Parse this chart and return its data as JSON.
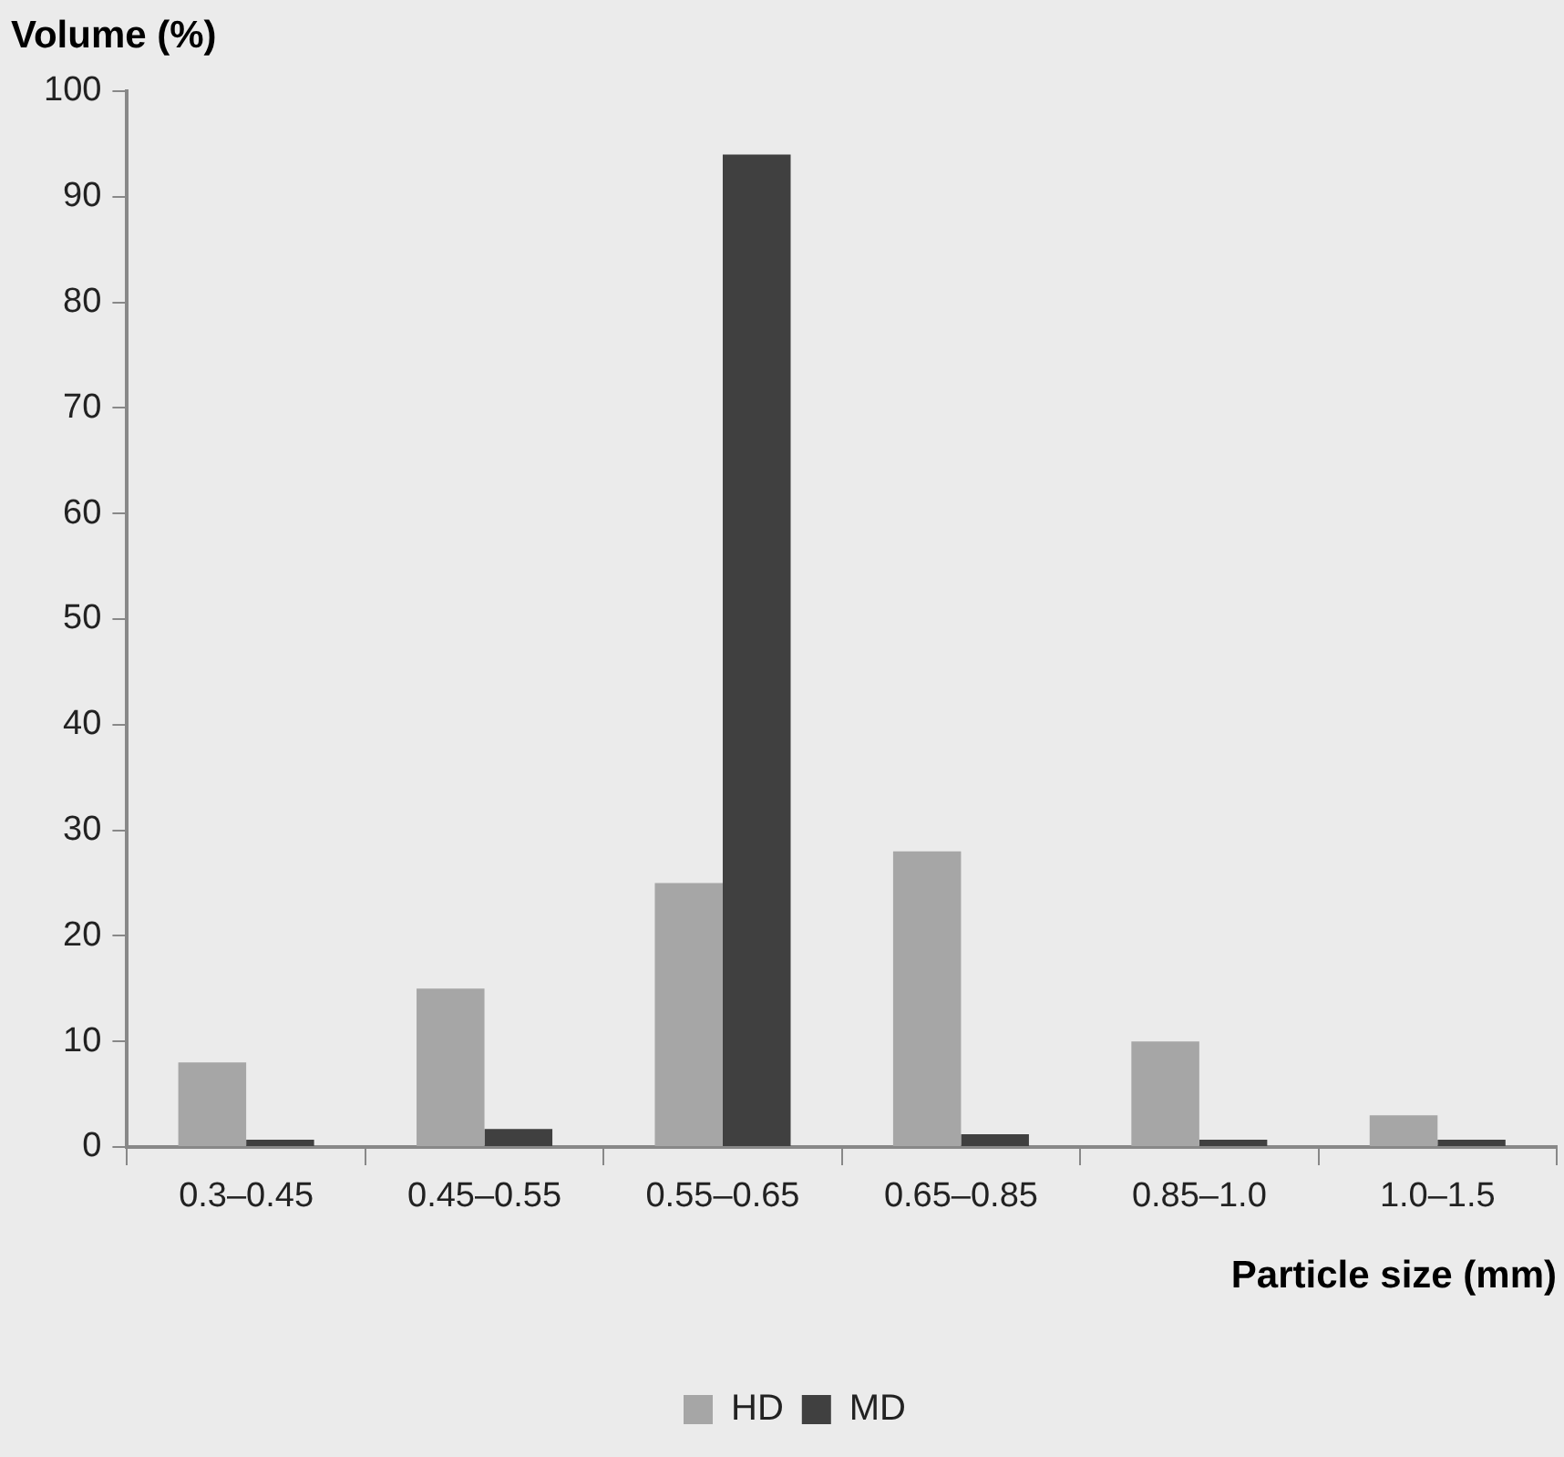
{
  "chart_data": {
    "type": "bar",
    "xlabel": "Particle size (mm)",
    "ylabel": "Volume (%)",
    "categories": [
      "0.3–0.45",
      "0.45–0.55",
      "0.55–0.65",
      "0.65–0.85",
      "0.85–1.0",
      "1.0–1.5"
    ],
    "series": [
      {
        "name": "HD",
        "color": "#a6a6a6",
        "values": [
          8,
          15,
          25,
          28,
          10,
          3
        ]
      },
      {
        "name": "MD",
        "color": "#404040",
        "values": [
          0.7,
          1.7,
          94,
          1.2,
          0.7,
          0.7
        ]
      }
    ],
    "ylim": [
      0,
      100
    ],
    "yticks": [
      0,
      10,
      20,
      30,
      40,
      50,
      60,
      70,
      80,
      90,
      100
    ],
    "grid": false,
    "legend": "bottom"
  }
}
